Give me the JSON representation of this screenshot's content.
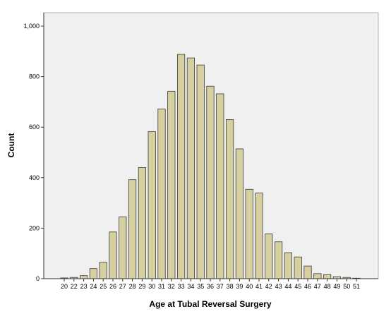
{
  "chart_data": {
    "type": "bar",
    "title": "",
    "xlabel": "Age at Tubal Reversal Surgery",
    "ylabel": "Count",
    "ylim": [
      0,
      1000
    ],
    "yticks": [
      0,
      200,
      400,
      600,
      800,
      1000
    ],
    "ytick_labels": [
      "0",
      "200",
      "400",
      "600",
      "800",
      "1,000"
    ],
    "grid": false,
    "legend": "none",
    "categories": [
      "20",
      "22",
      "23",
      "24",
      "25",
      "26",
      "27",
      "28",
      "29",
      "30",
      "31",
      "32",
      "33",
      "34",
      "35",
      "36",
      "37",
      "38",
      "39",
      "40",
      "41",
      "42",
      "43",
      "44",
      "45",
      "46",
      "47",
      "48",
      "49",
      "50",
      "51"
    ],
    "values": [
      3,
      5,
      12,
      40,
      65,
      185,
      245,
      392,
      440,
      582,
      672,
      742,
      888,
      874,
      846,
      762,
      732,
      630,
      514,
      354,
      339,
      177,
      146,
      103,
      86,
      50,
      20,
      16,
      8,
      5,
      2
    ],
    "colors": {
      "plot_background": "#f0f0f0",
      "bar_fill": "#d6cfa0",
      "bar_stroke": "#3a3a3a",
      "axis": "#333333",
      "frame": "#b0b0b0"
    }
  }
}
